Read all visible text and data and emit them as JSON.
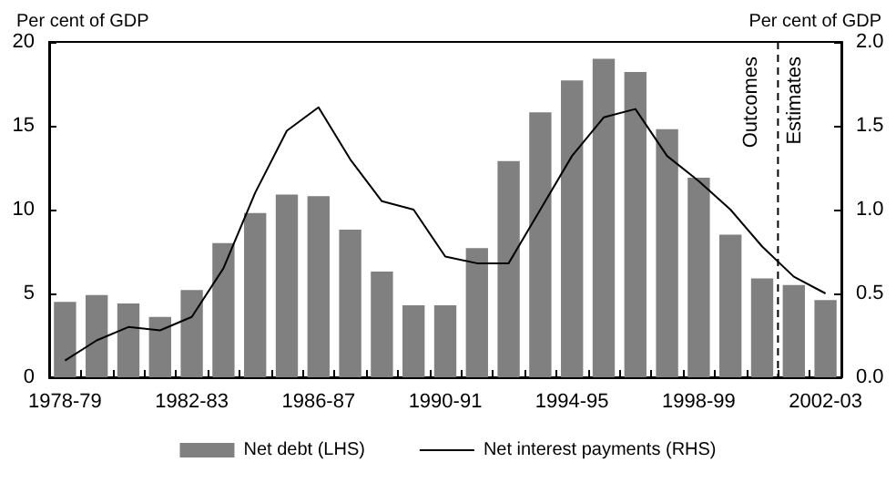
{
  "chart_data": {
    "type": "bar",
    "ylabel": "Per cent of GDP",
    "y2label": "Per cent of GDP",
    "categories": [
      "1978-79",
      null,
      null,
      null,
      "1982-83",
      null,
      null,
      null,
      "1986-87",
      null,
      null,
      null,
      "1990-91",
      null,
      null,
      null,
      "1994-95",
      null,
      null,
      null,
      "1998-99",
      null,
      null,
      null,
      "2002-03"
    ],
    "series": [
      {
        "name": "Net debt (LHS)",
        "color": "#808080",
        "values": [
          4.5,
          4.9,
          4.4,
          3.6,
          5.2,
          8.0,
          9.8,
          10.9,
          10.8,
          8.8,
          6.3,
          4.3,
          4.3,
          7.7,
          12.9,
          15.8,
          17.7,
          19.0,
          18.2,
          14.8,
          11.9,
          8.5,
          5.9,
          5.5,
          4.6
        ]
      },
      {
        "name": "Net interest payments (RHS)",
        "type": "line",
        "axis": "y2",
        "color": "#000000",
        "values": [
          0.1,
          0.22,
          0.3,
          0.28,
          0.36,
          0.65,
          1.1,
          1.47,
          1.61,
          1.3,
          1.05,
          1.0,
          0.72,
          0.68,
          0.68,
          1.0,
          1.32,
          1.55,
          1.6,
          1.32,
          1.17,
          1.0,
          0.78,
          0.6,
          0.5
        ]
      }
    ],
    "ylim": [
      0,
      20
    ],
    "yticks": [
      0,
      5,
      10,
      15,
      20
    ],
    "y2lim": [
      0,
      2
    ],
    "y2ticks": [
      {
        "value": 0,
        "label": "0.0"
      },
      {
        "value": 0.5,
        "label": "0.5"
      },
      {
        "value": 1,
        "label": "1.0"
      },
      {
        "value": 1.5,
        "label": "1.5"
      },
      {
        "value": 2,
        "label": "2.0"
      }
    ],
    "annotations": [
      "Outcomes",
      "Estimates"
    ],
    "grid": false,
    "legend": "bottom",
    "marker": "none",
    "line_style": "solid"
  }
}
